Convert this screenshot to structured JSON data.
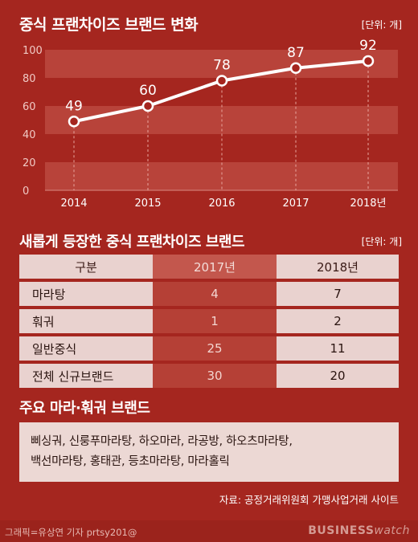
{
  "header": {
    "title": "중식 프랜차이즈 브랜드 변화",
    "unit": "[단위: 개]"
  },
  "chart_data": {
    "type": "line",
    "title": "중식 프랜차이즈 브랜드 변화",
    "categories": [
      "2014",
      "2015",
      "2016",
      "2017",
      "2018년"
    ],
    "values": [
      49,
      60,
      78,
      87,
      92
    ],
    "data_labels": [
      "49",
      "60",
      "78",
      "87",
      "92"
    ],
    "ylim": [
      0,
      100
    ],
    "yticks": [
      "0",
      "20",
      "40",
      "60",
      "80",
      "100"
    ],
    "colors": {
      "line": "#ffffff",
      "band": "#b8433a"
    }
  },
  "table": {
    "title": "새롭게 등장한 중식 프랜차이즈 브랜드",
    "unit": "[단위: 개]",
    "headers": [
      "구분",
      "2017년",
      "2018년"
    ],
    "rows": [
      [
        "마라탕",
        "4",
        "7"
      ],
      [
        "훠궈",
        "1",
        "2"
      ],
      [
        "일반중식",
        "25",
        "11"
      ],
      [
        "전체 신규브랜드",
        "30",
        "20"
      ]
    ]
  },
  "brands": {
    "title": "주요 마라·훠궈 브랜드",
    "line1": "삐싱궈, 신룽푸마라탕, 하오마라, 라공방, 하오츠마라탕,",
    "line2": "백선마라탕, 홍태관, 등초마라탕, 마라홀릭"
  },
  "source": "자료: 공정거래위원회 가맹사업거래 사이트",
  "footer": {
    "credit": "그래픽=유상연 기자 prtsy201@",
    "logo_main": "BUSINESS",
    "logo_sub": "watch"
  },
  "colors": {
    "background": "#a5261f",
    "accent_light": "#e9d2cf"
  }
}
